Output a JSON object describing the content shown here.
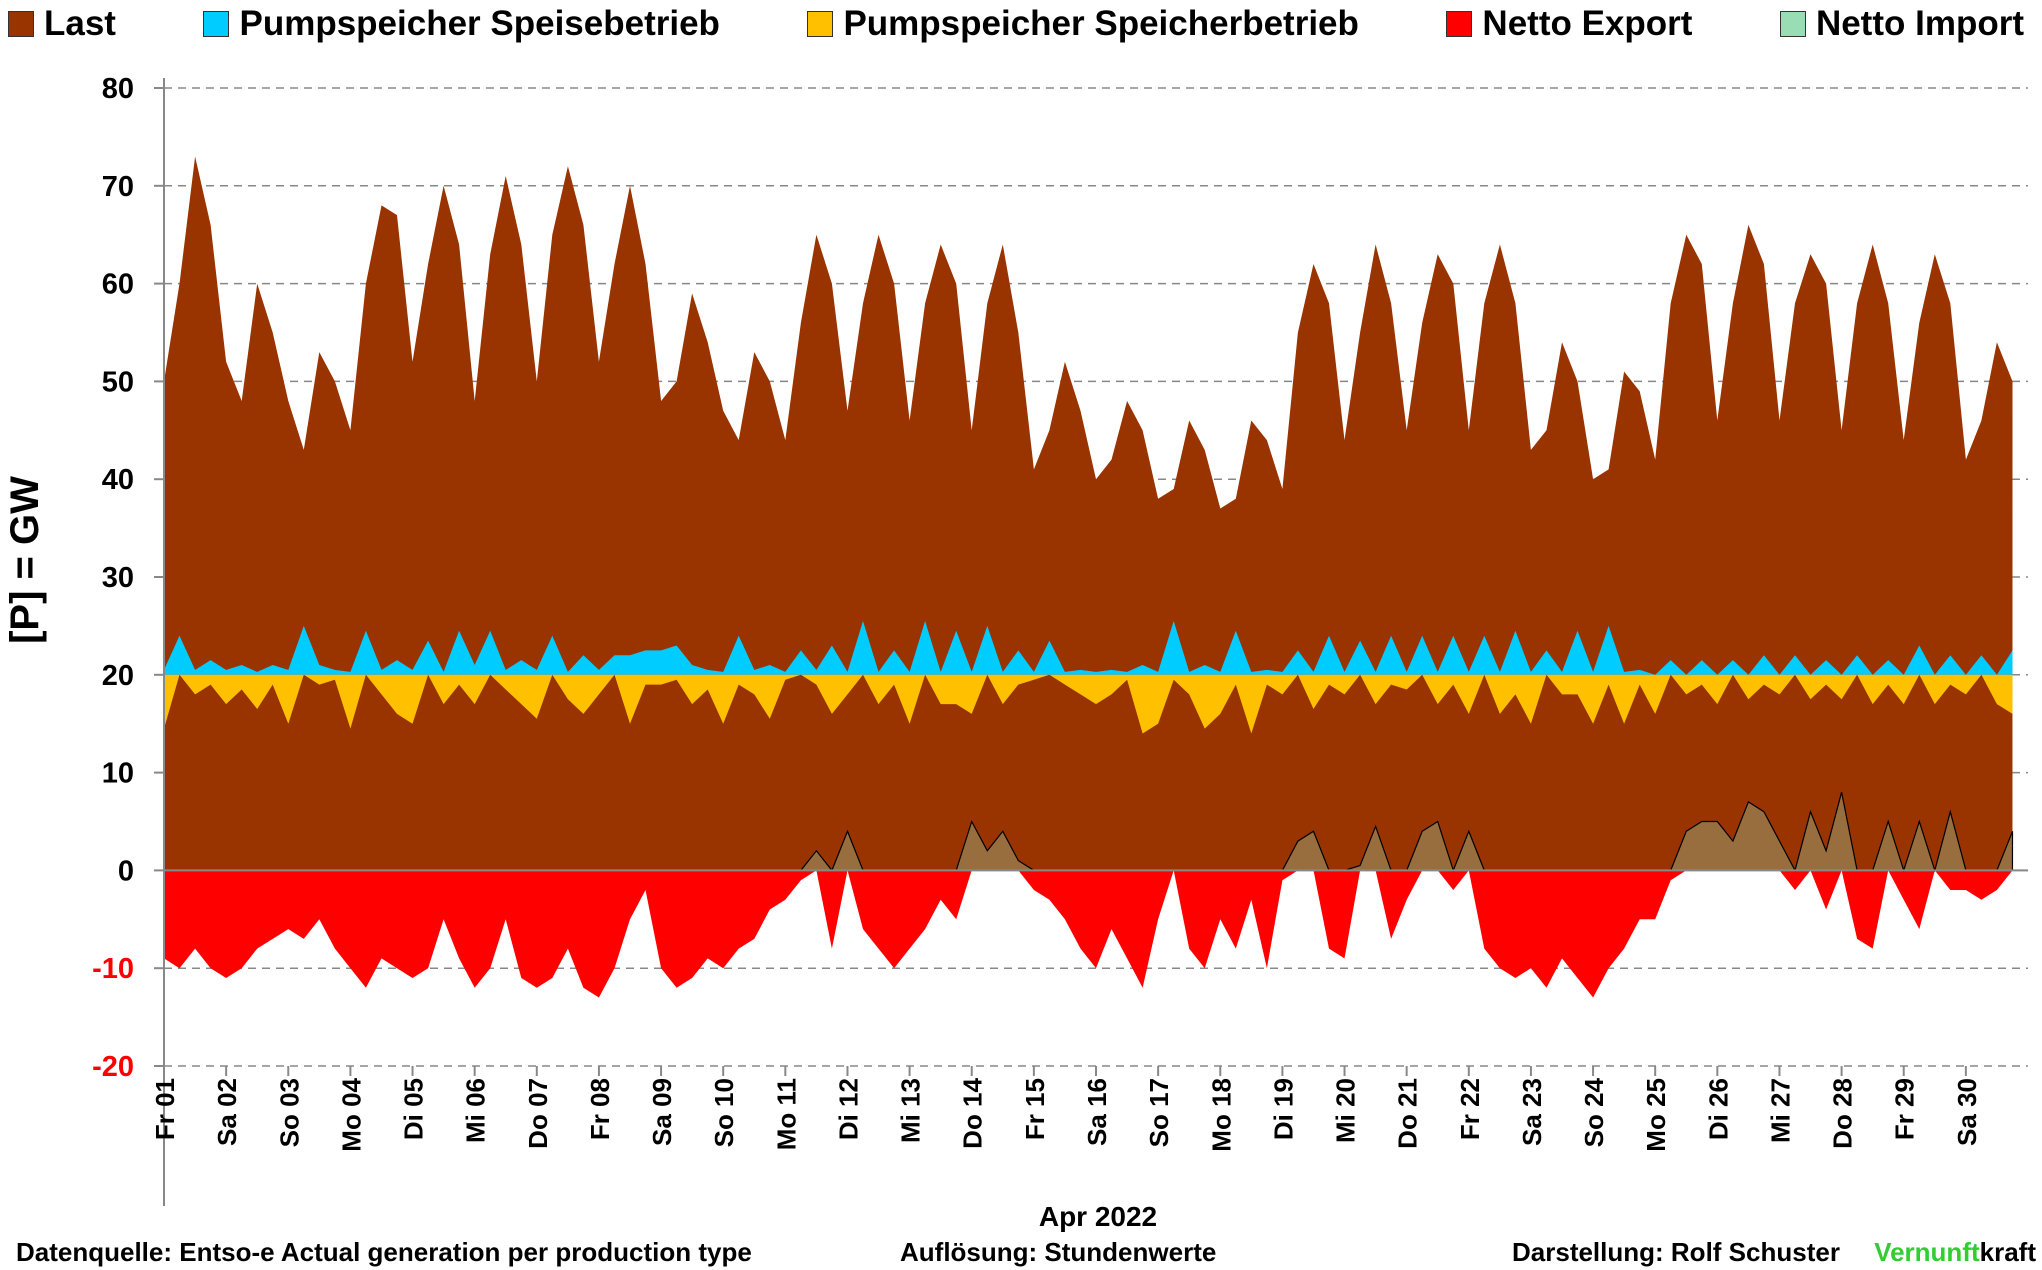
{
  "chart_data": {
    "type": "area",
    "ylabel": "[P]  =  GW",
    "xlabel": "Apr 2022",
    "xlim": [
      1,
      31
    ],
    "ylim": [
      -20,
      80
    ],
    "yticks": [
      -20,
      -10,
      0,
      10,
      20,
      30,
      40,
      50,
      60,
      70,
      80
    ],
    "xticks": [
      {
        "value": 1,
        "label": "Fr 01"
      },
      {
        "value": 2,
        "label": "Sa 02"
      },
      {
        "value": 3,
        "label": "So 03"
      },
      {
        "value": 4,
        "label": "Mo 04"
      },
      {
        "value": 5,
        "label": "Di 05"
      },
      {
        "value": 6,
        "label": "Mi 06"
      },
      {
        "value": 7,
        "label": "Do 07"
      },
      {
        "value": 8,
        "label": "Fr 08"
      },
      {
        "value": 9,
        "label": "Sa 09"
      },
      {
        "value": 10,
        "label": "So 10"
      },
      {
        "value": 11,
        "label": "Mo 11"
      },
      {
        "value": 12,
        "label": "Di 12"
      },
      {
        "value": 13,
        "label": "Mi 13"
      },
      {
        "value": 14,
        "label": "Do 14"
      },
      {
        "value": 15,
        "label": "Fr 15"
      },
      {
        "value": 16,
        "label": "Sa 16"
      },
      {
        "value": 17,
        "label": "So 17"
      },
      {
        "value": 18,
        "label": "Mo 18"
      },
      {
        "value": 19,
        "label": "Di 19"
      },
      {
        "value": 20,
        "label": "Mi 20"
      },
      {
        "value": 21,
        "label": "Do 21"
      },
      {
        "value": 22,
        "label": "Fr 22"
      },
      {
        "value": 23,
        "label": "Sa 23"
      },
      {
        "value": 24,
        "label": "So 24"
      },
      {
        "value": 25,
        "label": "Mo 25"
      },
      {
        "value": 26,
        "label": "Di 26"
      },
      {
        "value": 27,
        "label": "Mi 27"
      },
      {
        "value": 28,
        "label": "Do 28"
      },
      {
        "value": 29,
        "label": "Fr 29"
      },
      {
        "value": 30,
        "label": "Sa 30"
      }
    ],
    "grid": true,
    "pump_baseline": 20,
    "x": [
      1,
      1.25,
      1.5,
      1.75,
      2,
      2.25,
      2.5,
      2.75,
      3,
      3.25,
      3.5,
      3.75,
      4,
      4.25,
      4.5,
      4.75,
      5,
      5.25,
      5.5,
      5.75,
      6,
      6.25,
      6.5,
      6.75,
      7,
      7.25,
      7.5,
      7.75,
      8,
      8.25,
      8.5,
      8.75,
      9,
      9.25,
      9.5,
      9.75,
      10,
      10.25,
      10.5,
      10.75,
      11,
      11.25,
      11.5,
      11.75,
      12,
      12.25,
      12.5,
      12.75,
      13,
      13.25,
      13.5,
      13.75,
      14,
      14.25,
      14.5,
      14.75,
      15,
      15.25,
      15.5,
      15.75,
      16,
      16.25,
      16.5,
      16.75,
      17,
      17.25,
      17.5,
      17.75,
      18,
      18.25,
      18.5,
      18.75,
      19,
      19.25,
      19.5,
      19.75,
      20,
      20.25,
      20.5,
      20.75,
      21,
      21.25,
      21.5,
      21.75,
      22,
      22.25,
      22.5,
      22.75,
      23,
      23.25,
      23.5,
      23.75,
      24,
      24.25,
      24.5,
      24.75,
      25,
      25.25,
      25.5,
      25.75,
      26,
      26.25,
      26.5,
      26.75,
      27,
      27.25,
      27.5,
      27.75,
      28,
      28.25,
      28.5,
      28.75,
      29,
      29.25,
      29.5,
      29.75,
      30,
      30.25,
      30.5,
      30.75
    ],
    "series": [
      {
        "name": "Last",
        "color": "#993300",
        "base": "zero",
        "values": [
          50,
          60,
          73,
          66,
          52,
          48,
          60,
          55,
          48,
          43,
          53,
          50,
          45,
          60,
          68,
          67,
          52,
          62,
          70,
          64,
          48,
          63,
          71,
          64,
          50,
          65,
          72,
          66,
          52,
          62,
          70,
          62,
          48,
          50,
          59,
          54,
          47,
          44,
          53,
          50,
          44,
          56,
          65,
          60,
          47,
          58,
          65,
          60,
          46,
          58,
          64,
          60,
          45,
          58,
          64,
          55,
          41,
          45,
          52,
          47,
          40,
          42,
          48,
          45,
          38,
          39,
          46,
          43,
          37,
          38,
          46,
          44,
          39,
          55,
          62,
          58,
          44,
          55,
          64,
          58,
          45,
          56,
          63,
          60,
          45,
          58,
          64,
          58,
          43,
          45,
          54,
          50,
          40,
          41,
          51,
          49,
          42,
          58,
          65,
          62,
          46,
          58,
          66,
          62,
          46,
          58,
          63,
          60,
          45,
          58,
          64,
          58,
          44,
          56,
          63,
          58,
          42,
          46,
          54,
          50
        ]
      },
      {
        "name": "Netto Export",
        "color": "#ff0000",
        "base": "zero",
        "values": [
          -9,
          -10,
          -8,
          -10,
          -11,
          -10,
          -8,
          -7,
          -6,
          -7,
          -5,
          -8,
          -10,
          -12,
          -9,
          -10,
          -11,
          -10,
          -5,
          -9,
          -12,
          -10,
          -5,
          -11,
          -12,
          -11,
          -8,
          -12,
          -13,
          -10,
          -5,
          -2,
          -10,
          -12,
          -11,
          -9,
          -10,
          -8,
          -7,
          -4,
          -3,
          -1,
          0,
          -8,
          0,
          -6,
          -8,
          -10,
          -8,
          -6,
          -3,
          -5,
          0,
          0,
          0,
          0,
          -2,
          -3,
          -5,
          -8,
          -10,
          -6,
          -9,
          -12,
          -5,
          0,
          -8,
          -10,
          -5,
          -8,
          -3,
          -10,
          -1,
          0,
          0,
          -8,
          -9,
          0,
          0,
          -7,
          -3,
          0,
          0,
          -2,
          0,
          -8,
          -10,
          -11,
          -10,
          -12,
          -9,
          -11,
          -13,
          -10,
          -8,
          -5,
          -5,
          -1,
          0,
          0,
          0,
          0,
          0,
          0,
          0,
          -2,
          0,
          -4,
          0,
          -7,
          -8,
          0,
          -3,
          -6,
          0,
          -2,
          -2,
          -3,
          -2,
          0
        ]
      },
      {
        "name": "Netto Import",
        "color": "#99ddb5",
        "base": "zero",
        "values": [
          0,
          0,
          0,
          0,
          0,
          0,
          0,
          0,
          0,
          0,
          0,
          0,
          0,
          0,
          0,
          0,
          0,
          0,
          0,
          0,
          0,
          0,
          0,
          0,
          0,
          0,
          0,
          0,
          0,
          0,
          0,
          0,
          0,
          0,
          0,
          0,
          0,
          0,
          0,
          0,
          0,
          0,
          2,
          0,
          4,
          0,
          0,
          0,
          0,
          0,
          0,
          0,
          5,
          2,
          4,
          1,
          0,
          0,
          0,
          0,
          0,
          0,
          0,
          0,
          0,
          0,
          0,
          0,
          0,
          0,
          0,
          0,
          0,
          3,
          4,
          0,
          0,
          0.5,
          4.5,
          0,
          0,
          4,
          5,
          0,
          4,
          0,
          0,
          0,
          0,
          0,
          0,
          0,
          0,
          0,
          0,
          0,
          0,
          0,
          4,
          5,
          5,
          3,
          7,
          6,
          3,
          0,
          6,
          2,
          8,
          0,
          0,
          5,
          0,
          5,
          0,
          6,
          0,
          0,
          0,
          4
        ]
      },
      {
        "name": "Pumpspeicher Speisebetrieb",
        "color": "#00ccff",
        "base": "pump",
        "values": [
          20.5,
          24,
          20.5,
          21.5,
          20.5,
          21,
          20.3,
          21,
          20.5,
          25,
          21,
          20.5,
          20.3,
          24.5,
          20.5,
          21.5,
          20.5,
          23.5,
          20.3,
          24.5,
          21,
          24.5,
          20.5,
          21.5,
          20.5,
          24,
          20.3,
          22,
          20.5,
          22,
          22,
          22.5,
          22.5,
          23,
          21,
          20.5,
          20.3,
          24,
          20.5,
          21,
          20.3,
          22.5,
          20.5,
          23,
          20.3,
          25.5,
          20.3,
          22.5,
          20.3,
          25.5,
          20.3,
          24.5,
          20.3,
          25,
          20.3,
          22.5,
          20.3,
          23.5,
          20.3,
          20.5,
          20.3,
          20.5,
          20.3,
          21,
          20.3,
          25.5,
          20.3,
          21,
          20.3,
          24.5,
          20.3,
          20.5,
          20.3,
          22.5,
          20.3,
          24,
          20.3,
          23.5,
          20.3,
          24,
          20.3,
          24,
          20.3,
          24,
          20.3,
          24,
          20.3,
          24.5,
          20.3,
          22.5,
          20.3,
          24.5,
          20.3,
          25,
          20.3,
          20.5,
          20,
          21.5,
          20,
          21.5,
          20,
          21.5,
          20,
          22,
          20,
          22,
          20,
          21.5,
          20,
          22,
          20,
          21.5,
          20,
          23,
          20,
          22,
          20,
          22,
          20,
          22.5
        ]
      },
      {
        "name": "Pumpspeicher Speicherbetrieb",
        "color": "#ffc000",
        "base": "pump",
        "values": [
          14.5,
          20,
          18,
          19,
          17,
          18.5,
          16.5,
          19,
          15,
          20,
          19,
          19.5,
          14.5,
          20,
          18,
          16,
          15,
          20,
          17,
          19,
          17,
          20,
          18.5,
          17,
          15.5,
          20,
          17.5,
          16,
          18,
          20,
          15,
          19,
          19,
          19.5,
          17,
          18.5,
          15,
          19,
          18,
          15.5,
          19.5,
          20,
          19,
          16,
          18,
          20,
          17,
          19,
          15,
          20,
          17,
          17,
          16,
          20,
          17,
          19,
          19.5,
          20,
          19,
          18,
          17,
          18,
          19.5,
          14,
          15,
          19.5,
          18,
          14.5,
          16,
          19,
          14,
          19,
          18,
          20,
          16.5,
          19,
          18,
          20,
          17,
          19,
          18.5,
          20,
          17,
          19,
          16,
          20,
          16,
          18,
          15,
          20,
          18,
          18,
          15,
          19,
          15,
          19,
          16,
          20,
          18,
          19,
          17,
          20,
          17.5,
          19,
          18,
          20,
          17.5,
          19,
          17.5,
          20,
          17,
          19,
          17,
          20,
          17,
          19,
          18,
          20,
          17,
          16
        ]
      }
    ],
    "legend_order": [
      "Last",
      "Pumpspeicher Speisebetrieb",
      "Pumpspeicher Speicherbetrieb",
      "Netto Export",
      "Netto Import"
    ]
  },
  "footer": {
    "source": "Datenquelle: Entso-e  Actual generation per production type",
    "resolution": "Auflösung: Stundenwerte",
    "author": "Darstellung:  Rolf Schuster",
    "brand_1": "Vernunft",
    "brand_2": "kraft"
  }
}
